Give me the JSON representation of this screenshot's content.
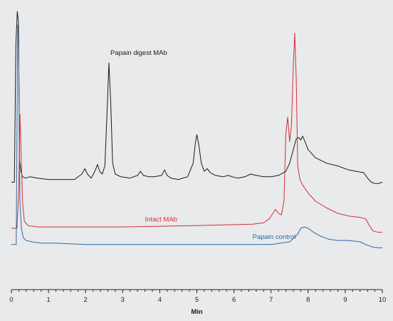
{
  "chart_data": {
    "type": "line",
    "title": "",
    "xlabel": "Min",
    "ylabel": "",
    "xlim": [
      0,
      10
    ],
    "ylim": [
      0,
      1
    ],
    "x_ticks": [
      "0",
      "1",
      "2",
      "3",
      "4",
      "5",
      "6",
      "7",
      "8",
      "9",
      "10"
    ],
    "grid": false,
    "legend": "inline labels",
    "series": [
      {
        "name": "Papain digest MAb",
        "color": "#1a1a1a",
        "x": [
          0,
          0.08,
          0.12,
          0.16,
          0.19,
          0.22,
          0.26,
          0.3,
          0.38,
          0.5,
          0.7,
          1.0,
          1.4,
          1.7,
          1.9,
          1.98,
          2.05,
          2.15,
          2.25,
          2.32,
          2.38,
          2.45,
          2.52,
          2.58,
          2.63,
          2.68,
          2.73,
          2.8,
          2.95,
          3.2,
          3.4,
          3.48,
          3.56,
          3.7,
          3.85,
          4.05,
          4.13,
          4.2,
          4.3,
          4.5,
          4.75,
          4.9,
          4.96,
          5.0,
          5.05,
          5.12,
          5.2,
          5.28,
          5.36,
          5.5,
          5.7,
          5.85,
          5.95,
          6.1,
          6.3,
          6.45,
          6.6,
          6.8,
          7.0,
          7.2,
          7.4,
          7.5,
          7.6,
          7.68,
          7.75,
          7.8,
          7.85,
          7.9,
          8.0,
          8.2,
          8.5,
          8.8,
          9.1,
          9.3,
          9.5,
          9.6,
          9.7,
          9.8,
          9.9,
          10.0
        ],
        "y": [
          0.37,
          0.37,
          0.88,
          1.0,
          0.96,
          0.45,
          0.41,
          0.39,
          0.385,
          0.39,
          0.385,
          0.38,
          0.38,
          0.38,
          0.4,
          0.42,
          0.4,
          0.385,
          0.41,
          0.435,
          0.41,
          0.4,
          0.43,
          0.63,
          0.81,
          0.66,
          0.44,
          0.4,
          0.39,
          0.385,
          0.395,
          0.41,
          0.395,
          0.39,
          0.39,
          0.395,
          0.415,
          0.395,
          0.385,
          0.38,
          0.39,
          0.44,
          0.515,
          0.545,
          0.51,
          0.44,
          0.41,
          0.42,
          0.405,
          0.395,
          0.39,
          0.395,
          0.39,
          0.385,
          0.39,
          0.4,
          0.395,
          0.39,
          0.39,
          0.395,
          0.41,
          0.44,
          0.49,
          0.53,
          0.535,
          0.525,
          0.54,
          0.525,
          0.49,
          0.46,
          0.44,
          0.43,
          0.415,
          0.41,
          0.405,
          0.385,
          0.37,
          0.365,
          0.365,
          0.37
        ]
      },
      {
        "name": "Intact MAb",
        "color": "#d42e3a",
        "x": [
          0,
          0.15,
          0.2,
          0.23,
          0.26,
          0.3,
          0.35,
          0.45,
          0.7,
          1.5,
          3.0,
          5.0,
          6.5,
          6.8,
          6.95,
          7.05,
          7.12,
          7.2,
          7.28,
          7.35,
          7.4,
          7.45,
          7.5,
          7.55,
          7.6,
          7.64,
          7.68,
          7.72,
          7.78,
          7.85,
          8.0,
          8.2,
          8.5,
          8.8,
          9.1,
          9.4,
          9.55,
          9.65,
          9.75,
          9.9,
          10.0
        ],
        "y": [
          0.2,
          0.2,
          0.34,
          0.62,
          0.5,
          0.3,
          0.225,
          0.21,
          0.205,
          0.205,
          0.205,
          0.21,
          0.215,
          0.22,
          0.235,
          0.255,
          0.27,
          0.255,
          0.25,
          0.3,
          0.55,
          0.61,
          0.52,
          0.58,
          0.8,
          0.92,
          0.75,
          0.43,
          0.38,
          0.36,
          0.33,
          0.3,
          0.275,
          0.255,
          0.245,
          0.24,
          0.235,
          0.21,
          0.19,
          0.185,
          0.185
        ]
      },
      {
        "name": "Papain control",
        "color": "#2e68a8",
        "x": [
          0,
          0.13,
          0.17,
          0.2,
          0.23,
          0.27,
          0.32,
          0.4,
          0.55,
          0.8,
          1.2,
          2.0,
          3.0,
          4.5,
          6.0,
          7.0,
          7.5,
          7.7,
          7.8,
          7.9,
          8.0,
          8.15,
          8.35,
          8.55,
          8.8,
          9.1,
          9.4,
          9.55,
          9.65,
          9.75,
          9.9,
          10.0
        ],
        "y": [
          0.14,
          0.14,
          0.95,
          0.82,
          0.3,
          0.2,
          0.165,
          0.155,
          0.15,
          0.145,
          0.145,
          0.14,
          0.14,
          0.14,
          0.14,
          0.14,
          0.15,
          0.175,
          0.2,
          0.205,
          0.2,
          0.185,
          0.17,
          0.16,
          0.155,
          0.155,
          0.15,
          0.14,
          0.135,
          0.13,
          0.128,
          0.128
        ]
      }
    ],
    "annotations": [
      {
        "text": "Papain digest MAb",
        "series": 0,
        "x": 2.63,
        "y": 0.84
      },
      {
        "text": "Intact MAb",
        "series": 1,
        "x": 3.6,
        "y": 0.225
      },
      {
        "text": "Papain control",
        "series": 2,
        "x": 6.5,
        "y": 0.16
      }
    ]
  }
}
